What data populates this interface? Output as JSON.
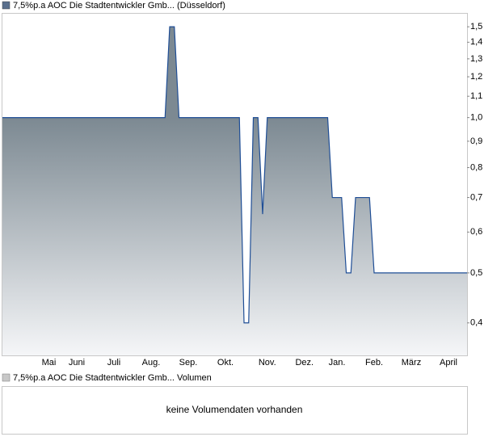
{
  "chart_data": {
    "type": "area",
    "categories": [
      null,
      null,
      null,
      null,
      null,
      null,
      null,
      null,
      null,
      null,
      "Mai",
      null,
      null,
      null,
      null,
      null,
      "Juni",
      null,
      null,
      null,
      null,
      null,
      null,
      null,
      "Juli",
      null,
      null,
      null,
      null,
      null,
      null,
      null,
      "Aug.",
      null,
      null,
      null,
      null,
      null,
      null,
      null,
      "Sep.",
      null,
      null,
      null,
      null,
      null,
      null,
      null,
      "Okt.",
      null,
      null,
      null,
      null,
      null,
      null,
      null,
      null,
      "Nov.",
      null,
      null,
      null,
      null,
      null,
      null,
      null,
      "Dez.",
      null,
      null,
      null,
      null,
      null,
      null,
      "Jan.",
      null,
      null,
      null,
      null,
      null,
      null,
      null,
      "Feb.",
      null,
      null,
      null,
      null,
      null,
      null,
      null,
      "März",
      null,
      null,
      null,
      null,
      null,
      null,
      null,
      "April",
      null,
      null,
      null,
      null
    ],
    "series": [
      {
        "name": "7,5%p.a AOC Die Stadtentwickler Gmb... (Düsseldorf)",
        "color": "#1f4e96",
        "values": [
          1,
          1,
          1,
          1,
          1,
          1,
          1,
          1,
          1,
          1,
          1,
          1,
          1,
          1,
          1,
          1,
          1,
          1,
          1,
          1,
          1,
          1,
          1,
          1,
          1,
          1,
          1,
          1,
          1,
          1,
          1,
          1,
          1,
          1,
          1,
          1,
          1.5,
          1.5,
          1,
          1,
          1,
          1,
          1,
          1,
          1,
          1,
          1,
          1,
          1,
          1,
          1,
          1,
          0.4,
          0.4,
          1,
          1,
          0.65,
          1,
          1,
          1,
          1,
          1,
          1,
          1,
          1,
          1,
          1,
          1,
          1,
          1,
          1,
          0.7,
          0.7,
          0.7,
          0.5,
          0.5,
          0.7,
          0.7,
          0.7,
          0.7,
          0.5,
          0.5,
          0.5,
          0.5,
          0.5,
          0.5,
          0.5,
          0.5,
          0.5,
          0.5,
          0.5,
          0.5,
          0.5,
          0.5,
          0.5,
          0.5,
          0.5,
          0.5,
          0.5,
          0.5,
          0.5
        ]
      }
    ],
    "log_scale": true,
    "ylim": [
      0.346,
      1.59
    ],
    "yticks": [
      {
        "value": 0.4,
        "label": "0,4"
      },
      {
        "value": 0.5,
        "label": "0,5"
      },
      {
        "value": 0.6,
        "label": "0,6"
      },
      {
        "value": 0.7,
        "label": "0,7"
      },
      {
        "value": 0.8,
        "label": "0,8"
      },
      {
        "value": 0.9,
        "label": "0,9"
      },
      {
        "value": 1.0,
        "label": "1,0"
      },
      {
        "value": 1.1,
        "label": "1,1"
      },
      {
        "value": 1.2,
        "label": "1,2"
      },
      {
        "value": 1.3,
        "label": "1,3"
      },
      {
        "value": 1.4,
        "label": "1,4"
      },
      {
        "value": 1.5,
        "label": "1,5"
      }
    ]
  },
  "volume_panel": {
    "legend": "7,5%p.a AOC Die Stadtentwickler Gmb... Volumen",
    "message": "keine Volumendaten vorhanden"
  }
}
